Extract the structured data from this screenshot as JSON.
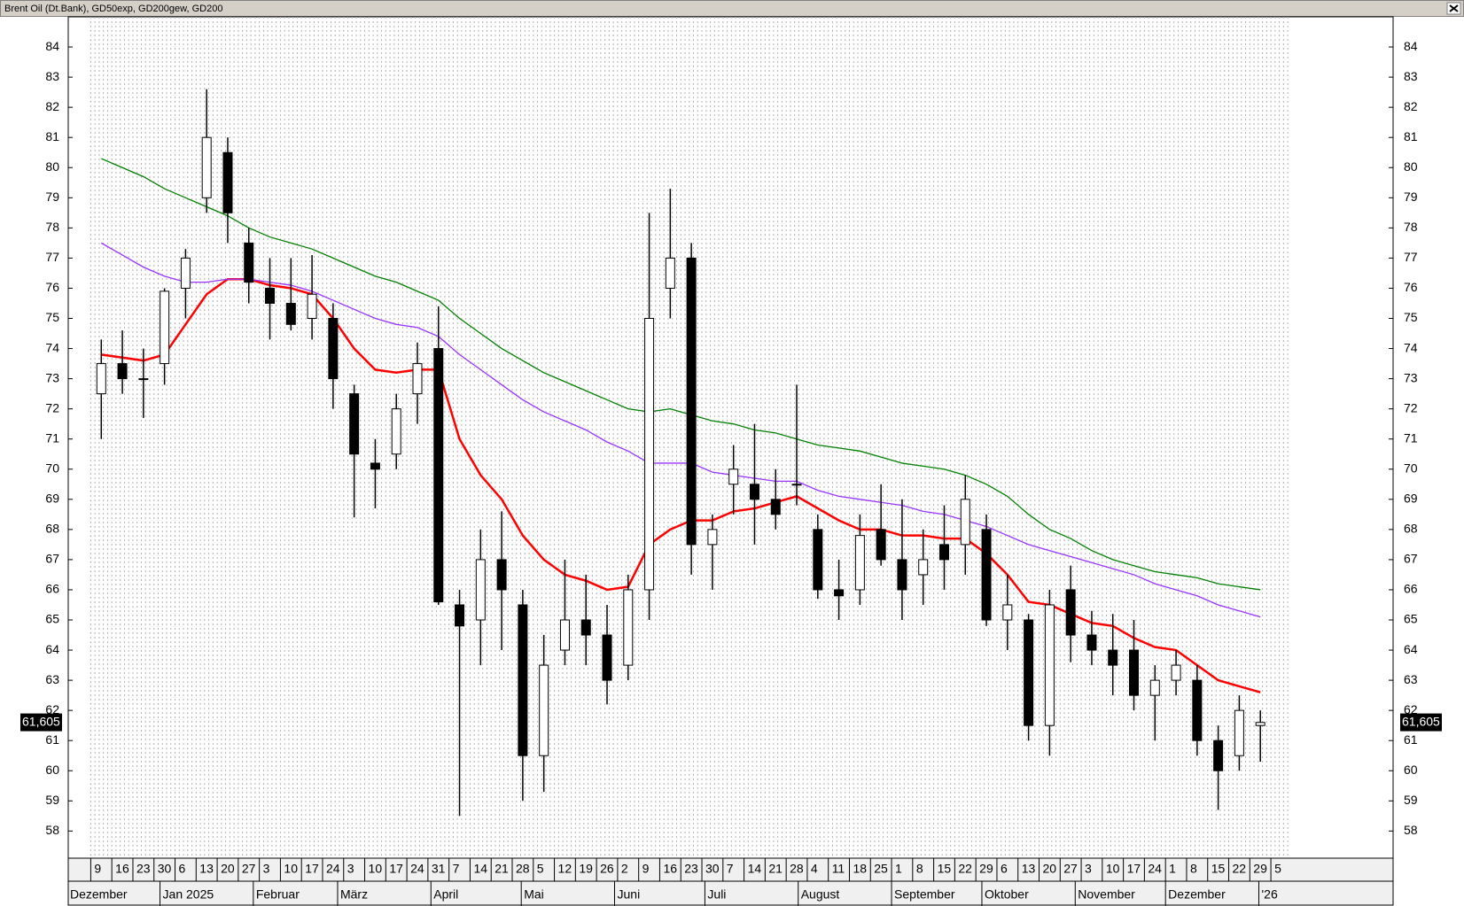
{
  "chart_data": {
    "type": "candlestick",
    "instrument": "Brent Oil (Dt.Bank)",
    "days": [
      9,
      16,
      23,
      30,
      6,
      13,
      20,
      27,
      3,
      10,
      17,
      24,
      3,
      10,
      17,
      24,
      31,
      7,
      14,
      21,
      28,
      5,
      12,
      19,
      26,
      2,
      9,
      16,
      23,
      30,
      7,
      14,
      21,
      28,
      4,
      11,
      18,
      25,
      1,
      8,
      15,
      22,
      29,
      6,
      13,
      20,
      27,
      3,
      10,
      17,
      24,
      1,
      8,
      15,
      22,
      29,
      5
    ],
    "months": [
      "Dezember",
      "Jan 2025",
      "Februar",
      "März",
      "April",
      "Mai",
      "Juni",
      "Juli",
      "August",
      "September",
      "Oktober",
      "November",
      "Dezember",
      "'26"
    ],
    "open": [
      72.5,
      73.5,
      73.0,
      73.5,
      76.0,
      79.0,
      80.5,
      77.5,
      76.0,
      75.5,
      75.0,
      75.0,
      72.5,
      70.2,
      70.5,
      72.5,
      74.0,
      65.5,
      65.0,
      67.0,
      65.5,
      60.5,
      64.0,
      65.0,
      64.5,
      63.5,
      66.0,
      76.0,
      77.0,
      67.5,
      69.5,
      69.5,
      69.0,
      69.5,
      68.0,
      66.0,
      66.0,
      68.0,
      67.0,
      66.5,
      67.5,
      67.5,
      68.0,
      65.0,
      65.0,
      61.5,
      66.0,
      64.5,
      64.0,
      64.0,
      62.5,
      63.0,
      63.0,
      61.0,
      60.5,
      61.5,
      null
    ],
    "high": [
      74.3,
      74.6,
      74.0,
      76.0,
      77.3,
      82.6,
      81.0,
      78.0,
      77.0,
      77.0,
      77.1,
      75.5,
      72.8,
      71.0,
      72.5,
      74.2,
      75.4,
      66.0,
      68.0,
      68.6,
      66.0,
      64.5,
      67.0,
      66.5,
      65.5,
      66.5,
      78.5,
      79.3,
      77.5,
      68.5,
      70.8,
      71.5,
      70.0,
      72.8,
      68.5,
      67.0,
      68.5,
      69.5,
      69.0,
      68.0,
      68.8,
      69.8,
      68.5,
      66.5,
      65.2,
      66.0,
      66.8,
      65.3,
      65.2,
      65.0,
      63.5,
      64.0,
      63.5,
      61.5,
      62.5,
      62.0,
      null
    ],
    "low": [
      71.0,
      72.5,
      71.7,
      72.8,
      75.0,
      78.5,
      77.5,
      75.5,
      74.3,
      74.6,
      74.3,
      72.0,
      68.4,
      68.7,
      70.0,
      71.5,
      65.5,
      58.5,
      63.5,
      64.0,
      59.0,
      59.3,
      63.5,
      63.5,
      62.2,
      63.0,
      65.0,
      75.0,
      66.5,
      66.0,
      68.5,
      67.5,
      68.0,
      68.8,
      65.7,
      65.0,
      65.5,
      66.8,
      65.0,
      65.5,
      66.0,
      66.5,
      64.8,
      64.0,
      61.0,
      60.5,
      63.6,
      63.5,
      62.5,
      62.0,
      61.0,
      62.5,
      60.5,
      58.7,
      60.0,
      60.3,
      null
    ],
    "close": [
      73.5,
      73.0,
      73.0,
      75.9,
      77.0,
      81.0,
      78.5,
      76.2,
      75.5,
      74.8,
      75.8,
      73.0,
      70.5,
      70.0,
      72.0,
      73.5,
      65.6,
      64.8,
      67.0,
      66.0,
      60.5,
      63.5,
      65.0,
      64.5,
      63.0,
      66.0,
      75.0,
      77.0,
      67.5,
      68.0,
      70.0,
      69.0,
      68.5,
      69.5,
      66.0,
      65.8,
      67.8,
      67.0,
      66.0,
      67.0,
      67.0,
      69.0,
      65.0,
      65.5,
      61.5,
      65.5,
      64.5,
      64.0,
      63.5,
      62.5,
      63.0,
      63.5,
      61.0,
      60.0,
      62.0,
      61.6,
      null
    ],
    "series": [
      {
        "name": "GD50exp",
        "color": "#ff0000",
        "values": [
          73.8,
          73.7,
          73.6,
          73.8,
          74.8,
          75.8,
          76.3,
          76.3,
          76.1,
          76.0,
          75.8,
          75.0,
          74.0,
          73.3,
          73.2,
          73.3,
          73.3,
          71.0,
          69.8,
          69.0,
          67.8,
          67.0,
          66.5,
          66.3,
          66.0,
          66.1,
          67.5,
          68.0,
          68.3,
          68.3,
          68.6,
          68.7,
          68.9,
          69.1,
          68.7,
          68.3,
          68.0,
          68.0,
          67.8,
          67.8,
          67.7,
          67.7,
          67.2,
          66.5,
          65.6,
          65.5,
          65.2,
          64.9,
          64.8,
          64.4,
          64.1,
          64.0,
          63.5,
          63.0,
          62.8,
          62.6,
          null
        ]
      },
      {
        "name": "GD200gew",
        "color": "#9933ff",
        "values": [
          77.5,
          77.1,
          76.7,
          76.4,
          76.2,
          76.2,
          76.3,
          76.3,
          76.2,
          76.1,
          75.9,
          75.6,
          75.3,
          75.0,
          74.8,
          74.7,
          74.4,
          73.8,
          73.3,
          72.8,
          72.3,
          71.9,
          71.6,
          71.3,
          70.9,
          70.6,
          70.2,
          70.2,
          70.2,
          69.9,
          69.8,
          69.7,
          69.6,
          69.6,
          69.3,
          69.1,
          69.0,
          68.9,
          68.8,
          68.6,
          68.5,
          68.3,
          68.1,
          67.8,
          67.5,
          67.3,
          67.1,
          66.9,
          66.7,
          66.5,
          66.2,
          66.0,
          65.8,
          65.5,
          65.3,
          65.1,
          null
        ]
      },
      {
        "name": "GD200",
        "color": "#008000",
        "values": [
          80.3,
          80.0,
          79.7,
          79.3,
          79.0,
          78.7,
          78.4,
          78.0,
          77.7,
          77.5,
          77.3,
          77.0,
          76.7,
          76.4,
          76.2,
          75.9,
          75.6,
          75.0,
          74.5,
          74.0,
          73.6,
          73.2,
          72.9,
          72.6,
          72.3,
          72.0,
          71.9,
          72.0,
          71.8,
          71.6,
          71.5,
          71.3,
          71.2,
          71.0,
          70.8,
          70.7,
          70.6,
          70.4,
          70.2,
          70.1,
          70.0,
          69.8,
          69.5,
          69.1,
          68.5,
          68.0,
          67.7,
          67.3,
          67.0,
          66.8,
          66.6,
          66.5,
          66.4,
          66.2,
          66.1,
          66.0,
          null
        ]
      }
    ],
    "last_price": {
      "value": 61.605,
      "label": "61,605"
    },
    "ylim": [
      57.1,
      85.0
    ],
    "yticks": [
      58,
      59,
      60,
      61,
      62,
      63,
      64,
      65,
      66,
      67,
      68,
      69,
      70,
      71,
      72,
      73,
      74,
      75,
      76,
      77,
      78,
      79,
      80,
      81,
      82,
      83,
      84
    ],
    "grid": true
  }
}
